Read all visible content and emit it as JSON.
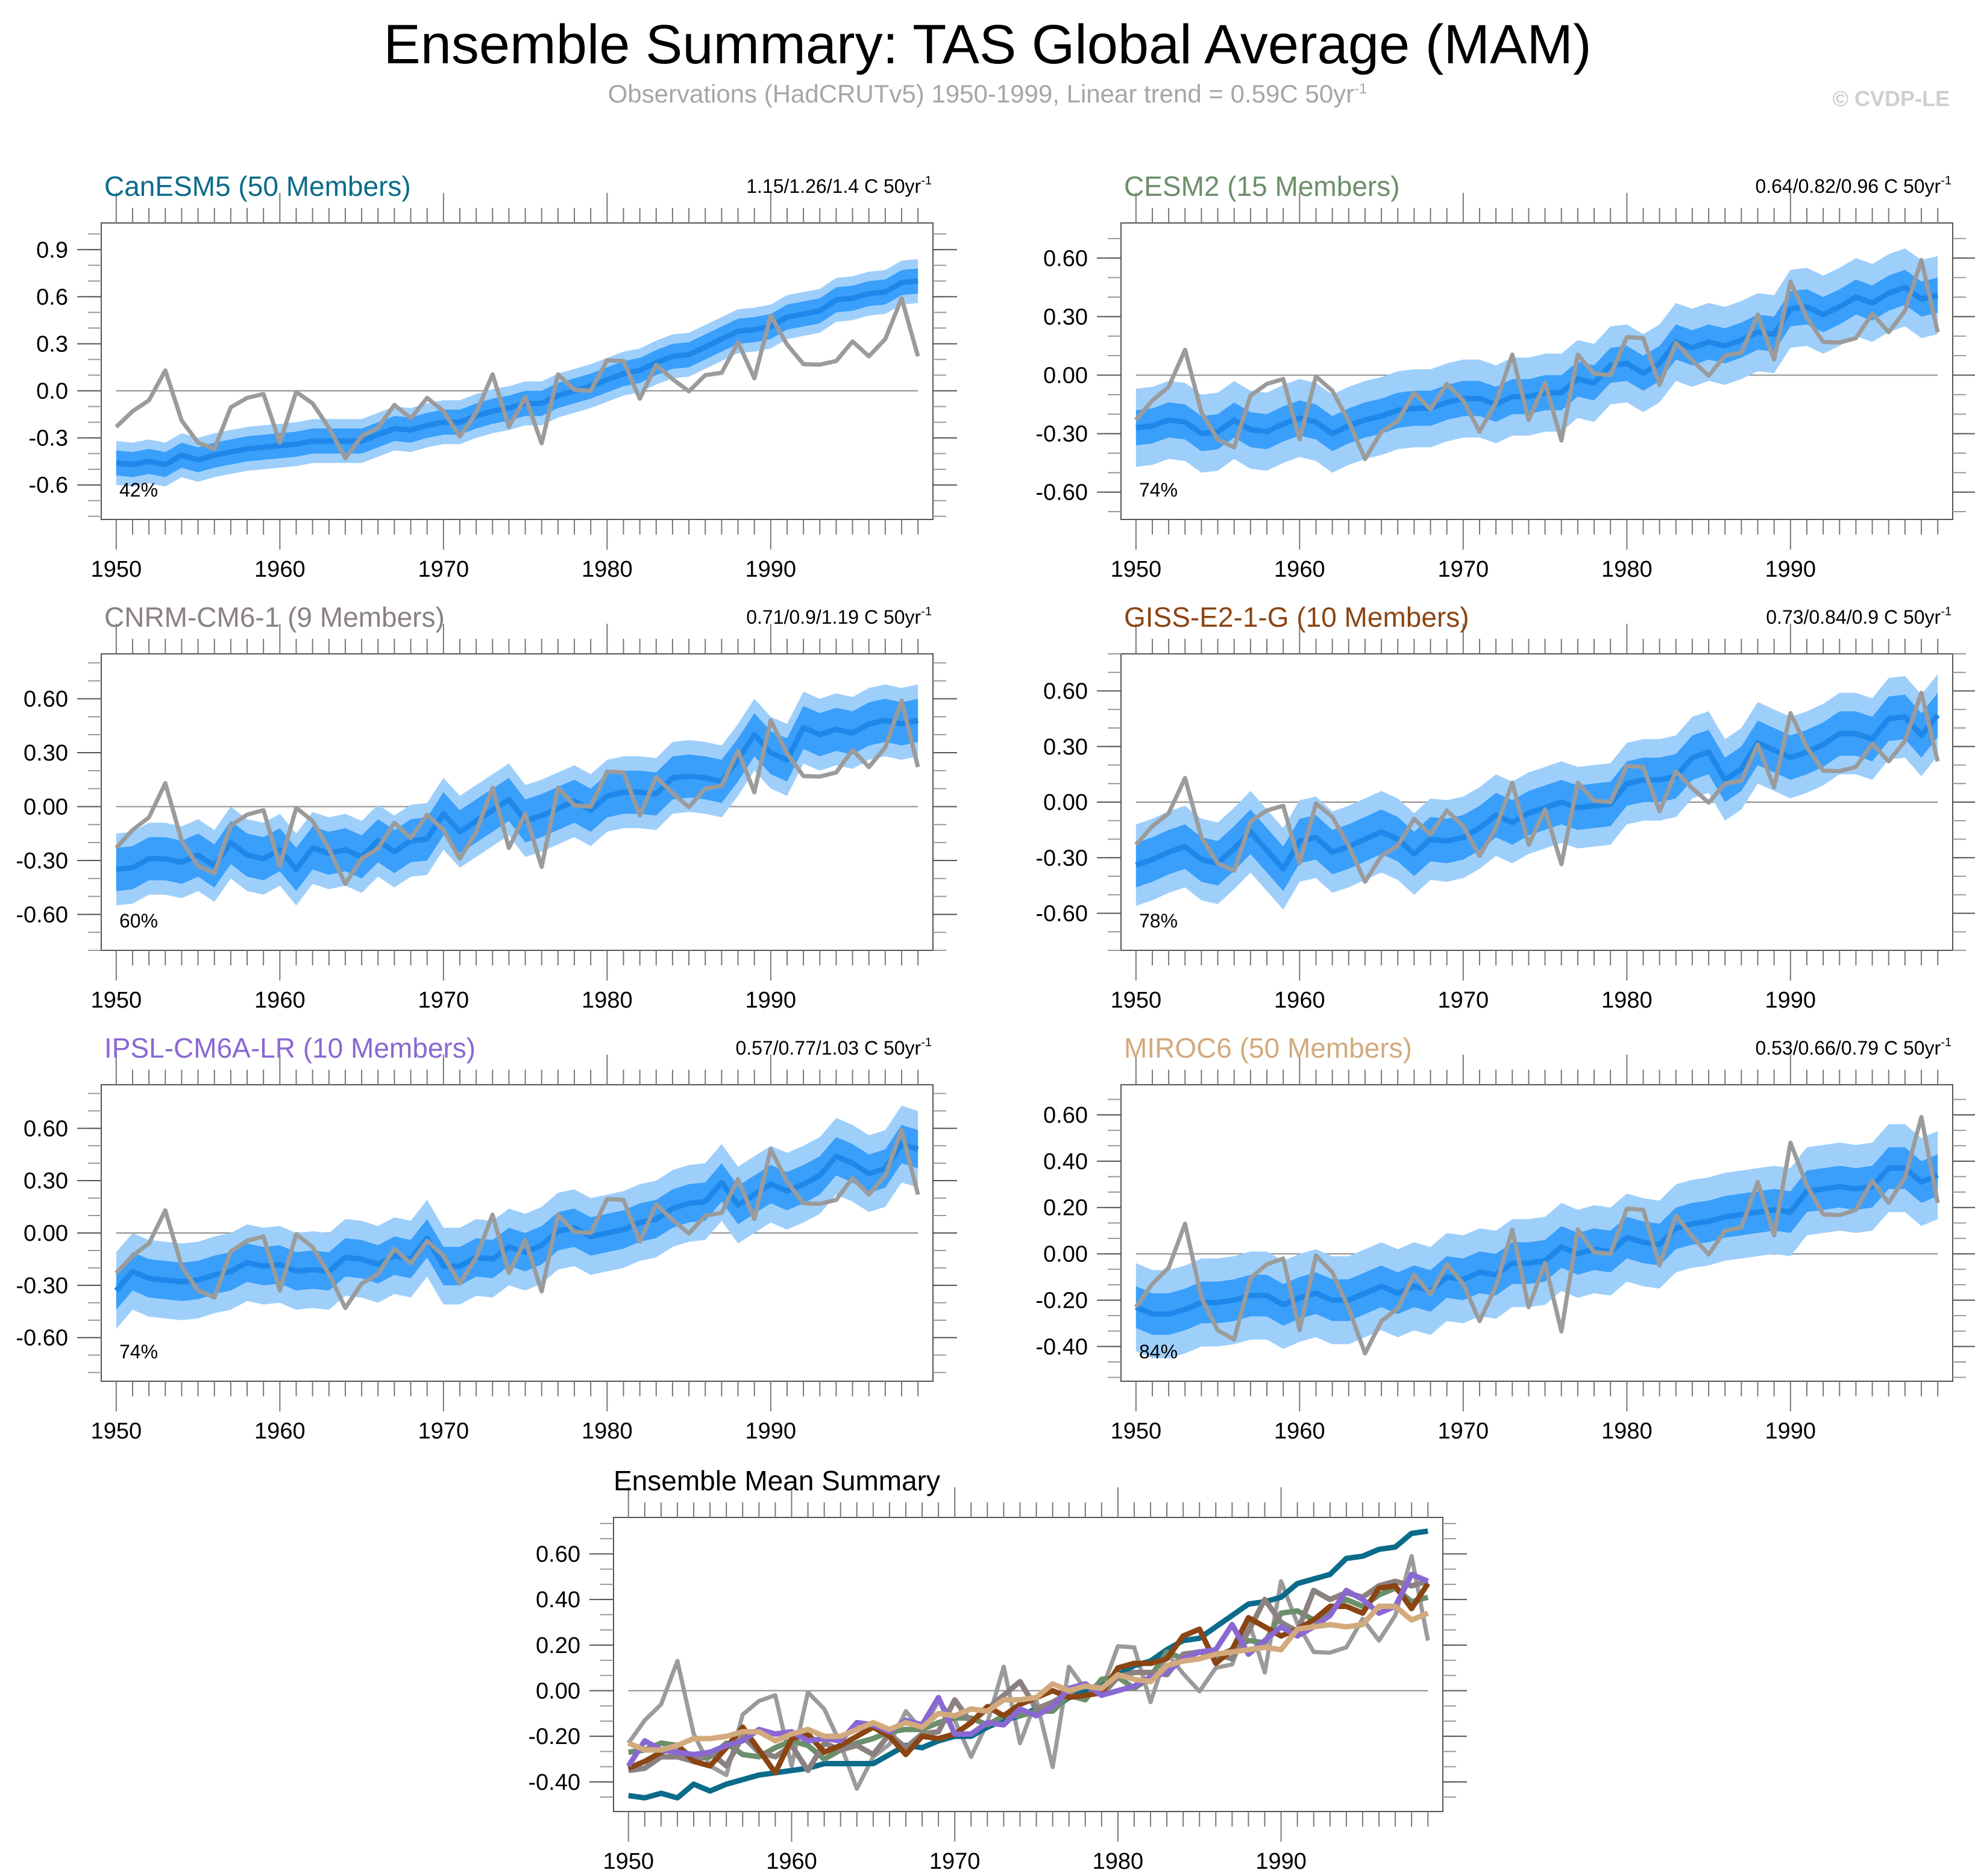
{
  "header": {
    "title": "Ensemble Summary: TAS Global Average (MAM)",
    "subtitle": "Observations (HadCRUTv5) 1950-1999, Linear trend = 0.59C 50yr",
    "subtitle_sup": "-1",
    "copyright": "© CVDP-LE"
  },
  "colors": {
    "obs": "#9b9b9b",
    "band_outer": "#9ecffb",
    "band_inner": "#3a9ffa",
    "mean_line": "#1e88ea",
    "zero_line": "#8c8c8c"
  },
  "chart_data": {
    "type": "line",
    "x_start": 1950,
    "x_end": 1999,
    "xticks": [
      1950,
      1960,
      1970,
      1980,
      1990
    ],
    "observations": {
      "name": "HadCRUTv5",
      "values": [
        -0.23,
        -0.13,
        -0.06,
        0.13,
        -0.19,
        -0.33,
        -0.37,
        -0.105,
        -0.045,
        -0.02,
        -0.33,
        -0.007,
        -0.08,
        -0.235,
        -0.43,
        -0.29,
        -0.235,
        -0.09,
        -0.175,
        -0.045,
        -0.13,
        -0.29,
        -0.14,
        0.105,
        -0.23,
        -0.04,
        -0.335,
        0.105,
        0.007,
        0.0,
        0.195,
        0.19,
        -0.05,
        0.165,
        0.075,
        -0.003,
        0.1,
        0.115,
        0.31,
        0.08,
        0.48,
        0.295,
        0.17,
        0.167,
        0.19,
        0.315,
        0.22,
        0.33,
        0.59,
        0.22
      ]
    },
    "panels": [
      {
        "model": "CanESM5 (50 Members)",
        "color": "#0b6b8a",
        "trend": "1.15/1.26/1.4 C 50yr",
        "trend_sup": "-1",
        "percent": "42%",
        "ylim": [
          -0.82,
          1.07
        ],
        "yticks": [
          -0.6,
          -0.3,
          0.0,
          0.3,
          0.6,
          0.9
        ],
        "ytick_labels": [
          "-0.6",
          "-0.3",
          "0.0",
          "0.3",
          "0.6",
          "0.9"
        ],
        "inner_spread": 0.08,
        "outer_spread": 0.14,
        "mean": [
          -0.46,
          -0.47,
          -0.45,
          -0.47,
          -0.41,
          -0.44,
          -0.41,
          -0.39,
          -0.37,
          -0.36,
          -0.35,
          -0.34,
          -0.32,
          -0.32,
          -0.32,
          -0.32,
          -0.28,
          -0.24,
          -0.25,
          -0.22,
          -0.2,
          -0.2,
          -0.16,
          -0.13,
          -0.11,
          -0.08,
          -0.08,
          -0.03,
          0.0,
          0.03,
          0.07,
          0.11,
          0.13,
          0.18,
          0.22,
          0.23,
          0.28,
          0.33,
          0.38,
          0.39,
          0.41,
          0.47,
          0.49,
          0.51,
          0.58,
          0.59,
          0.62,
          0.63,
          0.69,
          0.7
        ]
      },
      {
        "model": "CESM2 (15 Members)",
        "color": "#6b8e6b",
        "trend": "0.64/0.82/0.96 C 50yr",
        "trend_sup": "-1",
        "percent": "74%",
        "ylim": [
          -0.74,
          0.78
        ],
        "yticks": [
          -0.6,
          -0.3,
          0.0,
          0.3,
          0.6
        ],
        "ytick_labels": [
          "-0.60",
          "-0.30",
          "0.00",
          "0.30",
          "0.60"
        ],
        "inner_spread": 0.09,
        "outer_spread": 0.2,
        "mean": [
          -0.27,
          -0.26,
          -0.23,
          -0.24,
          -0.3,
          -0.29,
          -0.23,
          -0.28,
          -0.29,
          -0.25,
          -0.22,
          -0.24,
          -0.3,
          -0.26,
          -0.23,
          -0.21,
          -0.18,
          -0.17,
          -0.17,
          -0.14,
          -0.12,
          -0.12,
          -0.15,
          -0.11,
          -0.11,
          -0.09,
          -0.09,
          -0.02,
          -0.04,
          0.05,
          0.06,
          0.01,
          0.06,
          0.17,
          0.14,
          0.17,
          0.15,
          0.18,
          0.22,
          0.21,
          0.34,
          0.35,
          0.31,
          0.35,
          0.4,
          0.37,
          0.42,
          0.45,
          0.39,
          0.41
        ]
      },
      {
        "model": "CNRM-CM6-1 (9 Members)",
        "color": "#8b8181",
        "trend": "0.71/0.9/1.19 C 50yr",
        "trend_sup": "-1",
        "percent": "60%",
        "ylim": [
          -0.8,
          0.85
        ],
        "yticks": [
          -0.6,
          -0.3,
          0.0,
          0.3,
          0.6
        ],
        "ytick_labels": [
          "-0.60",
          "-0.30",
          "0.00",
          "0.30",
          "0.60"
        ],
        "inner_spread": 0.12,
        "outer_spread": 0.2,
        "mean": [
          -0.35,
          -0.34,
          -0.29,
          -0.29,
          -0.31,
          -0.27,
          -0.33,
          -0.2,
          -0.27,
          -0.29,
          -0.24,
          -0.35,
          -0.23,
          -0.26,
          -0.24,
          -0.28,
          -0.19,
          -0.25,
          -0.19,
          -0.18,
          -0.04,
          -0.14,
          -0.08,
          -0.02,
          0.04,
          -0.08,
          -0.05,
          -0.01,
          0.03,
          -0.02,
          0.06,
          0.08,
          0.08,
          0.07,
          0.16,
          0.17,
          0.16,
          0.14,
          0.26,
          0.4,
          0.3,
          0.26,
          0.44,
          0.4,
          0.43,
          0.41,
          0.46,
          0.48,
          0.46,
          0.48
        ]
      },
      {
        "model": "GISS-E2-1-G (10 Members)",
        "color": "#8b4513",
        "trend": "0.73/0.84/0.9 C 50yr",
        "trend_sup": "-1",
        "percent": "78%",
        "ylim": [
          -0.8,
          0.8
        ],
        "yticks": [
          -0.6,
          -0.3,
          0.0,
          0.3,
          0.6
        ],
        "ytick_labels": [
          "-0.60",
          "-0.30",
          "0.00",
          "0.30",
          "0.60"
        ],
        "inner_spread": 0.12,
        "outer_spread": 0.22,
        "mean": [
          -0.34,
          -0.31,
          -0.27,
          -0.24,
          -0.31,
          -0.33,
          -0.25,
          -0.16,
          -0.26,
          -0.36,
          -0.21,
          -0.19,
          -0.27,
          -0.24,
          -0.2,
          -0.16,
          -0.2,
          -0.28,
          -0.2,
          -0.21,
          -0.19,
          -0.14,
          -0.07,
          -0.11,
          -0.06,
          -0.03,
          0.0,
          -0.03,
          -0.02,
          -0.01,
          0.1,
          0.12,
          0.12,
          0.14,
          0.24,
          0.27,
          0.12,
          0.18,
          0.32,
          0.28,
          0.24,
          0.27,
          0.31,
          0.37,
          0.37,
          0.34,
          0.45,
          0.46,
          0.36,
          0.47
        ]
      },
      {
        "model": "IPSL-CM6A-LR (10 Members)",
        "color": "#8a68d2",
        "trend": "0.57/0.77/1.03 C 50yr",
        "trend_sup": "-1",
        "percent": "74%",
        "ylim": [
          -0.85,
          0.85
        ],
        "yticks": [
          -0.6,
          -0.3,
          0.0,
          0.3,
          0.6
        ],
        "ytick_labels": [
          "-0.60",
          "-0.30",
          "0.00",
          "0.30",
          "0.60"
        ],
        "inner_spread": 0.11,
        "outer_spread": 0.22,
        "mean": [
          -0.33,
          -0.22,
          -0.26,
          -0.27,
          -0.28,
          -0.27,
          -0.24,
          -0.22,
          -0.17,
          -0.19,
          -0.18,
          -0.22,
          -0.21,
          -0.22,
          -0.14,
          -0.15,
          -0.18,
          -0.13,
          -0.15,
          -0.03,
          -0.19,
          -0.19,
          -0.14,
          -0.15,
          -0.08,
          -0.11,
          -0.07,
          0.01,
          0.03,
          -0.02,
          0.0,
          0.02,
          0.06,
          0.08,
          0.14,
          0.17,
          0.18,
          0.29,
          0.16,
          0.22,
          0.28,
          0.24,
          0.28,
          0.33,
          0.44,
          0.4,
          0.34,
          0.37,
          0.51,
          0.48
        ]
      },
      {
        "model": "MIROC6 (50 Members)",
        "color": "#d2aa7d",
        "trend": "0.53/0.66/0.79 C 50yr",
        "trend_sup": "-1",
        "percent": "84%",
        "ylim": [
          -0.55,
          0.73
        ],
        "yticks": [
          -0.4,
          -0.2,
          0.0,
          0.2,
          0.4,
          0.6
        ],
        "ytick_labels": [
          "-0.40",
          "-0.20",
          "0.00",
          "0.20",
          "0.40",
          "0.60"
        ],
        "inner_spread": 0.09,
        "outer_spread": 0.19,
        "mean": [
          -0.23,
          -0.26,
          -0.26,
          -0.24,
          -0.21,
          -0.21,
          -0.2,
          -0.18,
          -0.18,
          -0.22,
          -0.19,
          -0.17,
          -0.2,
          -0.2,
          -0.17,
          -0.14,
          -0.17,
          -0.14,
          -0.16,
          -0.1,
          -0.11,
          -0.08,
          -0.09,
          -0.04,
          -0.04,
          -0.03,
          0.03,
          0.0,
          0.02,
          0.01,
          0.07,
          0.05,
          0.04,
          0.11,
          0.13,
          0.14,
          0.16,
          0.17,
          0.18,
          0.19,
          0.18,
          0.27,
          0.28,
          0.29,
          0.28,
          0.29,
          0.37,
          0.37,
          0.31,
          0.34
        ]
      }
    ],
    "summary": {
      "title": "Ensemble Mean Summary",
      "ylim": [
        -0.53,
        0.76
      ],
      "yticks": [
        -0.4,
        -0.2,
        0.0,
        0.2,
        0.4,
        0.6
      ],
      "ytick_labels": [
        "-0.40",
        "-0.20",
        "0.00",
        "0.20",
        "0.40",
        "0.60"
      ]
    }
  }
}
